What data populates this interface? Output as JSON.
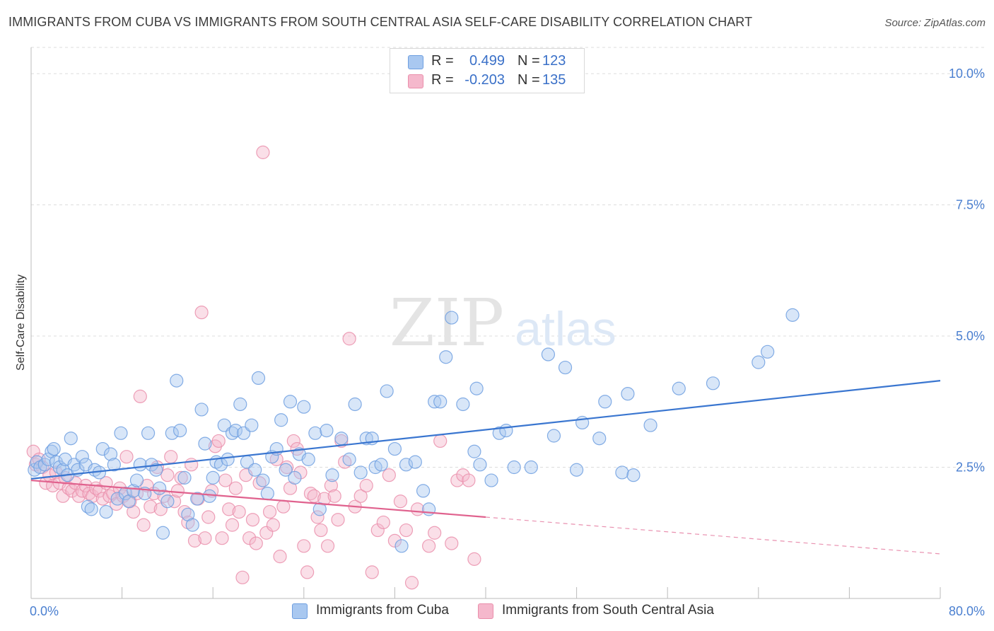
{
  "title": "IMMIGRANTS FROM CUBA VS IMMIGRANTS FROM SOUTH CENTRAL ASIA SELF-CARE DISABILITY CORRELATION CHART",
  "source": "Source: ZipAtlas.com",
  "watermark": {
    "zip": "ZIP",
    "atlas": "atlas"
  },
  "colors": {
    "blue_fill": "#a9c8f0",
    "blue_stroke": "#6f9fe0",
    "blue_line": "#3a76d0",
    "pink_fill": "#f5b8cc",
    "pink_stroke": "#ea8fab",
    "pink_line": "#e0628e",
    "axis_text": "#4a7fd0",
    "grid": "#dddddd"
  },
  "legend_top": {
    "rows": [
      {
        "r_label": "R =",
        "r_value": "0.499",
        "n_label": "N =",
        "n_value": "123",
        "color": "blue"
      },
      {
        "r_label": "R =",
        "r_value": "-0.203",
        "n_label": "N =",
        "n_value": "135",
        "color": "pink"
      }
    ]
  },
  "legend_bottom": {
    "items": [
      {
        "label": "Immigrants from Cuba",
        "color": "blue"
      },
      {
        "label": "Immigrants from South Central Asia",
        "color": "pink"
      }
    ]
  },
  "chart_data": {
    "type": "scatter",
    "title": "IMMIGRANTS FROM CUBA VS IMMIGRANTS FROM SOUTH CENTRAL ASIA SELF-CARE DISABILITY CORRELATION CHART",
    "xlabel": "",
    "ylabel": "Self-Care Disability",
    "xlim": [
      0,
      80
    ],
    "ylim": [
      0,
      10.5
    ],
    "x_ticks": [
      "0.0%",
      "80.0%"
    ],
    "y_ticks": [
      {
        "value": 2.5,
        "label": "2.5%"
      },
      {
        "value": 5.0,
        "label": "5.0%"
      },
      {
        "value": 7.5,
        "label": "7.5%"
      },
      {
        "value": 10.0,
        "label": "10.0%"
      }
    ],
    "grid": true,
    "legend_position": "top-center",
    "series": [
      {
        "name": "Immigrants from Cuba",
        "color": "blue",
        "R": 0.499,
        "N": 123,
        "trend": {
          "x": [
            0,
            80
          ],
          "y": [
            2.28,
            4.15
          ],
          "dashed_from": null
        },
        "points": [
          [
            0.3,
            2.45
          ],
          [
            0.5,
            2.6
          ],
          [
            0.8,
            2.5
          ],
          [
            1.2,
            2.55
          ],
          [
            1.5,
            2.65
          ],
          [
            1.8,
            2.8
          ],
          [
            2.0,
            2.85
          ],
          [
            2.2,
            2.6
          ],
          [
            2.5,
            2.5
          ],
          [
            2.8,
            2.45
          ],
          [
            3.0,
            2.65
          ],
          [
            3.2,
            2.35
          ],
          [
            3.5,
            3.05
          ],
          [
            3.8,
            2.55
          ],
          [
            4.1,
            2.45
          ],
          [
            4.5,
            2.7
          ],
          [
            4.8,
            2.55
          ],
          [
            5.0,
            1.75
          ],
          [
            5.3,
            1.7
          ],
          [
            5.6,
            2.45
          ],
          [
            6.0,
            2.4
          ],
          [
            6.3,
            2.85
          ],
          [
            6.6,
            1.65
          ],
          [
            7.0,
            2.75
          ],
          [
            7.3,
            2.55
          ],
          [
            7.6,
            1.9
          ],
          [
            7.9,
            3.15
          ],
          [
            8.3,
            2.0
          ],
          [
            8.6,
            1.85
          ],
          [
            9.0,
            2.05
          ],
          [
            9.3,
            2.25
          ],
          [
            9.6,
            2.55
          ],
          [
            10.0,
            2.0
          ],
          [
            10.3,
            3.15
          ],
          [
            10.6,
            2.55
          ],
          [
            11.0,
            2.45
          ],
          [
            11.3,
            2.1
          ],
          [
            11.6,
            1.25
          ],
          [
            12.0,
            1.85
          ],
          [
            12.4,
            3.15
          ],
          [
            12.8,
            4.15
          ],
          [
            13.1,
            3.2
          ],
          [
            13.5,
            2.3
          ],
          [
            13.8,
            1.6
          ],
          [
            14.2,
            1.4
          ],
          [
            14.6,
            1.9
          ],
          [
            15.0,
            3.6
          ],
          [
            15.3,
            2.95
          ],
          [
            15.7,
            1.95
          ],
          [
            16.0,
            2.3
          ],
          [
            16.3,
            2.6
          ],
          [
            16.7,
            2.55
          ],
          [
            17.0,
            3.3
          ],
          [
            17.3,
            2.65
          ],
          [
            17.7,
            3.15
          ],
          [
            18.0,
            3.2
          ],
          [
            18.4,
            3.7
          ],
          [
            18.7,
            3.15
          ],
          [
            19.0,
            2.6
          ],
          [
            19.4,
            3.3
          ],
          [
            19.7,
            2.45
          ],
          [
            20.0,
            4.2
          ],
          [
            20.4,
            2.25
          ],
          [
            20.8,
            2.0
          ],
          [
            21.2,
            2.7
          ],
          [
            21.6,
            2.85
          ],
          [
            22.0,
            3.4
          ],
          [
            22.4,
            2.45
          ],
          [
            22.8,
            3.75
          ],
          [
            23.2,
            2.3
          ],
          [
            23.6,
            2.75
          ],
          [
            24.0,
            3.65
          ],
          [
            24.4,
            2.65
          ],
          [
            25.0,
            3.15
          ],
          [
            25.4,
            1.7
          ],
          [
            26.0,
            3.2
          ],
          [
            26.5,
            2.35
          ],
          [
            27.3,
            3.05
          ],
          [
            28.0,
            2.65
          ],
          [
            28.5,
            3.7
          ],
          [
            29.0,
            2.4
          ],
          [
            29.5,
            3.05
          ],
          [
            30.0,
            3.05
          ],
          [
            30.3,
            2.5
          ],
          [
            30.8,
            2.55
          ],
          [
            31.3,
            3.95
          ],
          [
            32.0,
            2.85
          ],
          [
            32.6,
            1.0
          ],
          [
            33.0,
            2.55
          ],
          [
            33.8,
            2.6
          ],
          [
            34.5,
            2.05
          ],
          [
            35.0,
            1.7
          ],
          [
            35.5,
            3.75
          ],
          [
            36.0,
            3.75
          ],
          [
            36.5,
            4.6
          ],
          [
            37.0,
            5.35
          ],
          [
            38.0,
            3.7
          ],
          [
            39.0,
            2.8
          ],
          [
            39.2,
            4.0
          ],
          [
            39.5,
            2.55
          ],
          [
            40.5,
            2.25
          ],
          [
            41.2,
            3.15
          ],
          [
            41.8,
            3.2
          ],
          [
            42.5,
            2.5
          ],
          [
            44.0,
            2.5
          ],
          [
            45.5,
            4.65
          ],
          [
            46.0,
            3.1
          ],
          [
            47.0,
            4.4
          ],
          [
            48.0,
            2.45
          ],
          [
            48.5,
            3.35
          ],
          [
            50.0,
            3.05
          ],
          [
            50.5,
            3.75
          ],
          [
            52.0,
            2.4
          ],
          [
            52.5,
            3.9
          ],
          [
            53.0,
            2.35
          ],
          [
            54.5,
            3.3
          ],
          [
            57.0,
            4.0
          ],
          [
            60.0,
            4.1
          ],
          [
            64.0,
            4.5
          ],
          [
            64.8,
            4.7
          ],
          [
            67.0,
            5.4
          ]
        ]
      },
      {
        "name": "Immigrants from South Central Asia",
        "color": "pink",
        "R": -0.203,
        "N": 135,
        "trend": {
          "x": [
            0,
            80
          ],
          "y": [
            2.25,
            0.85
          ],
          "solid_until_x": 40
        },
        "points": [
          [
            0.2,
            2.8
          ],
          [
            0.4,
            2.55
          ],
          [
            0.7,
            2.65
          ],
          [
            1.0,
            2.5
          ],
          [
            1.3,
            2.2
          ],
          [
            1.6,
            2.35
          ],
          [
            1.9,
            2.15
          ],
          [
            2.2,
            2.4
          ],
          [
            2.5,
            2.2
          ],
          [
            2.8,
            1.95
          ],
          [
            3.0,
            2.3
          ],
          [
            3.3,
            2.1
          ],
          [
            3.6,
            2.05
          ],
          [
            3.9,
            2.2
          ],
          [
            4.2,
            1.95
          ],
          [
            4.5,
            2.05
          ],
          [
            4.8,
            2.15
          ],
          [
            5.1,
            2.0
          ],
          [
            5.4,
            1.95
          ],
          [
            5.7,
            2.1
          ],
          [
            6.0,
            2.05
          ],
          [
            6.3,
            1.9
          ],
          [
            6.6,
            2.2
          ],
          [
            6.9,
            1.95
          ],
          [
            7.2,
            2.0
          ],
          [
            7.5,
            1.8
          ],
          [
            7.8,
            2.1
          ],
          [
            8.1,
            1.95
          ],
          [
            8.4,
            2.7
          ],
          [
            8.7,
            1.85
          ],
          [
            9.0,
            1.65
          ],
          [
            9.3,
            2.0
          ],
          [
            9.6,
            3.85
          ],
          [
            9.9,
            1.4
          ],
          [
            10.2,
            2.15
          ],
          [
            10.5,
            1.75
          ],
          [
            10.8,
            2.0
          ],
          [
            11.1,
            2.5
          ],
          [
            11.4,
            1.7
          ],
          [
            11.7,
            1.95
          ],
          [
            12.0,
            2.35
          ],
          [
            12.3,
            2.7
          ],
          [
            12.6,
            1.85
          ],
          [
            12.9,
            2.05
          ],
          [
            13.2,
            2.3
          ],
          [
            13.5,
            1.65
          ],
          [
            13.8,
            1.45
          ],
          [
            14.1,
            2.55
          ],
          [
            14.4,
            1.1
          ],
          [
            14.7,
            1.9
          ],
          [
            15.0,
            5.45
          ],
          [
            15.3,
            1.15
          ],
          [
            15.6,
            1.55
          ],
          [
            15.9,
            2.05
          ],
          [
            16.2,
            2.9
          ],
          [
            16.5,
            3.0
          ],
          [
            16.8,
            1.15
          ],
          [
            17.1,
            2.25
          ],
          [
            17.4,
            1.7
          ],
          [
            17.7,
            1.4
          ],
          [
            18.0,
            2.1
          ],
          [
            18.3,
            1.65
          ],
          [
            18.6,
            0.4
          ],
          [
            18.9,
            2.35
          ],
          [
            19.2,
            1.15
          ],
          [
            19.5,
            1.5
          ],
          [
            19.8,
            1.05
          ],
          [
            20.1,
            2.2
          ],
          [
            20.4,
            8.5
          ],
          [
            20.7,
            1.25
          ],
          [
            21.0,
            1.65
          ],
          [
            21.3,
            1.4
          ],
          [
            21.6,
            2.65
          ],
          [
            21.9,
            0.8
          ],
          [
            22.2,
            1.75
          ],
          [
            22.5,
            2.5
          ],
          [
            22.8,
            2.1
          ],
          [
            23.1,
            3.0
          ],
          [
            23.4,
            2.85
          ],
          [
            23.7,
            2.4
          ],
          [
            24.0,
            1.0
          ],
          [
            24.3,
            0.5
          ],
          [
            24.6,
            2.0
          ],
          [
            24.9,
            1.95
          ],
          [
            25.2,
            1.55
          ],
          [
            25.5,
            1.3
          ],
          [
            25.8,
            1.9
          ],
          [
            26.1,
            1.0
          ],
          [
            26.4,
            2.15
          ],
          [
            26.7,
            1.95
          ],
          [
            27.0,
            1.5
          ],
          [
            27.3,
            3.0
          ],
          [
            27.6,
            2.6
          ],
          [
            28.0,
            4.95
          ],
          [
            28.5,
            1.75
          ],
          [
            29.0,
            1.95
          ],
          [
            29.5,
            2.15
          ],
          [
            30.0,
            0.5
          ],
          [
            30.5,
            1.3
          ],
          [
            31.0,
            1.45
          ],
          [
            31.5,
            2.35
          ],
          [
            32.0,
            1.1
          ],
          [
            32.5,
            1.85
          ],
          [
            33.0,
            1.3
          ],
          [
            33.5,
            0.3
          ],
          [
            34.0,
            1.7
          ],
          [
            35.0,
            1.0
          ],
          [
            35.5,
            1.25
          ],
          [
            36.0,
            3.0
          ],
          [
            37.0,
            1.05
          ],
          [
            37.5,
            2.25
          ],
          [
            38.0,
            2.35
          ],
          [
            38.5,
            2.25
          ],
          [
            39.0,
            0.75
          ]
        ]
      }
    ]
  }
}
